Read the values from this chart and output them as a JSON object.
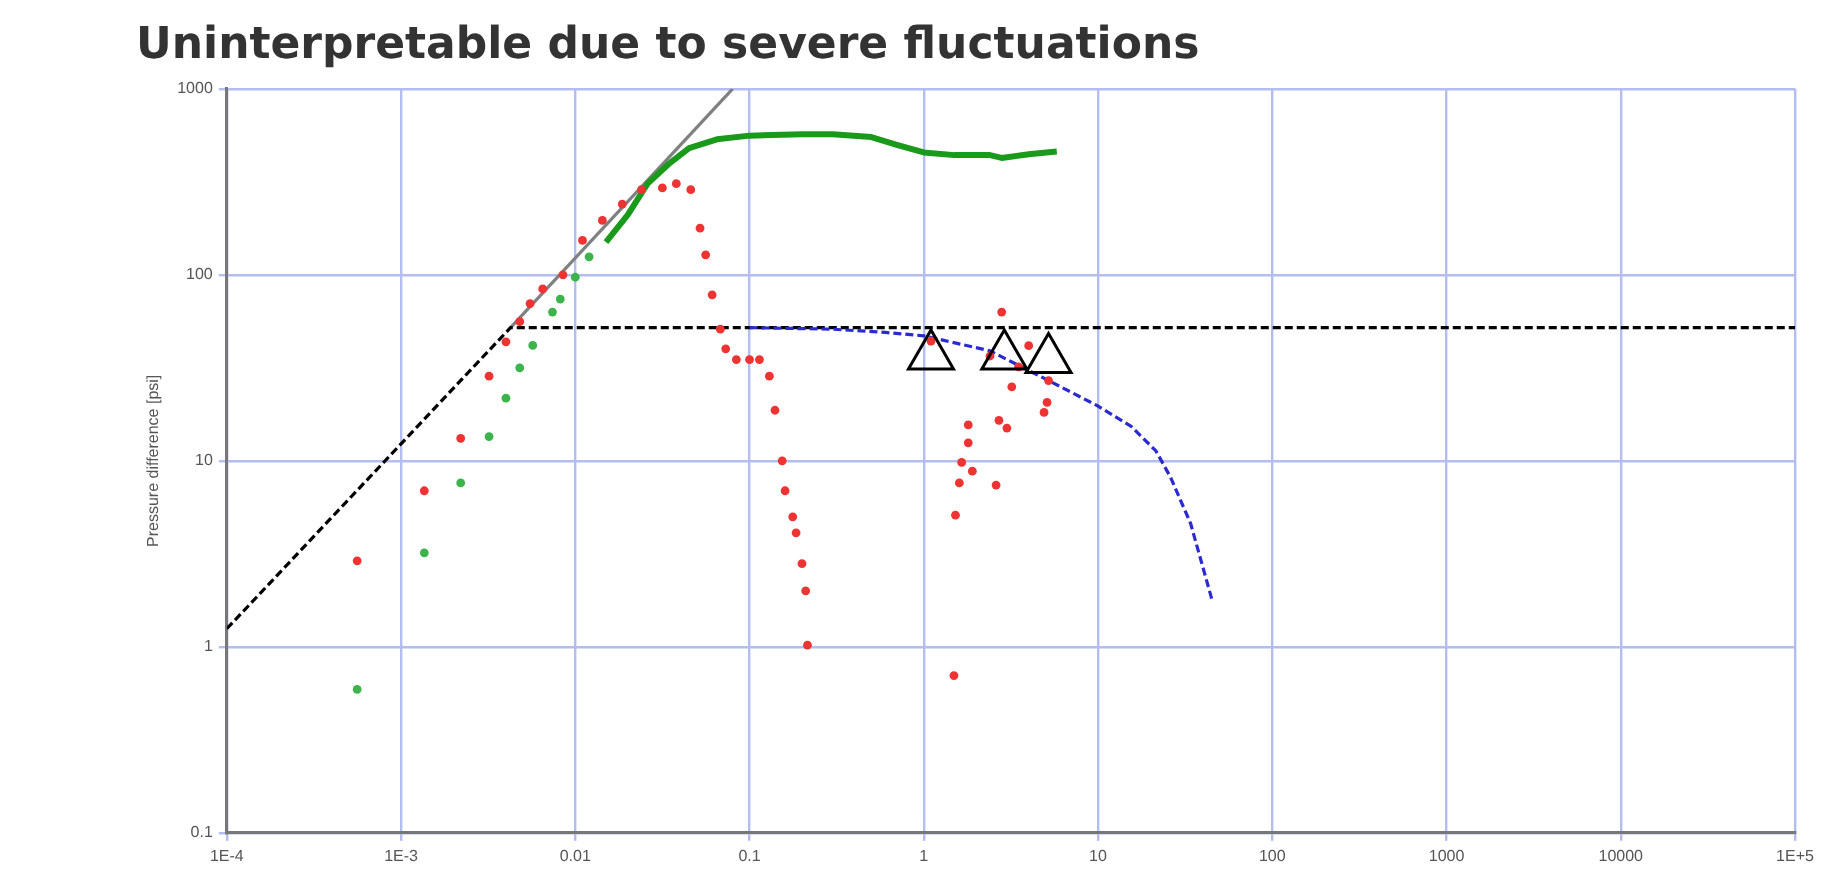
{
  "chart_data": {
    "type": "scatter",
    "title": "Uninterpretable due to severe fluctuations",
    "ylabel": "Pressure difference [psi]",
    "log": "xy",
    "grid": true,
    "legend": false,
    "xlim": [
      0.0001,
      100000
    ],
    "ylim": [
      0.1,
      1000
    ],
    "xticks": [
      {
        "value": 0.0001,
        "label": "1E-4"
      },
      {
        "value": 0.001,
        "label": "1E-3"
      },
      0.01,
      0.1,
      1,
      10,
      100,
      1000,
      10000,
      {
        "value": 100000,
        "label": "1E+5"
      }
    ],
    "yticks": [
      0.1,
      1,
      10,
      100,
      1000
    ],
    "series": [
      {
        "type": "line",
        "color": "#808080",
        "line_style": "solid",
        "x": [
          0.00425,
          0.08
        ],
        "values": [
          52,
          1000
        ]
      },
      {
        "type": "line",
        "color": "#000000",
        "line_style": "dashed",
        "x": [
          0.0001,
          0.00425,
          100000
        ],
        "values": [
          1.25,
          52,
          52
        ]
      },
      {
        "type": "line",
        "color": "#2a2ad0",
        "line_style": "dashed",
        "x": [
          0.1,
          0.3,
          0.6,
          1,
          2.4,
          5.2,
          10,
          15.5,
          21.5,
          26,
          34,
          45
        ],
        "values": [
          52,
          51,
          49,
          47,
          39,
          27,
          19.7,
          15.3,
          11.3,
          8.2,
          4.6,
          1.8
        ]
      },
      {
        "type": "line",
        "color": "#1a9a1a",
        "line_style": "solid",
        "x": [
          0.015,
          0.02,
          0.026,
          0.035,
          0.045,
          0.065,
          0.1,
          0.2,
          0.3,
          0.5,
          0.7,
          1.0,
          1.5,
          2.4,
          2.8,
          4,
          5.8
        ],
        "values": [
          150,
          210,
          309,
          400,
          480,
          535,
          560,
          570,
          570,
          550,
          500,
          455,
          440,
          440,
          425,
          445,
          460
        ]
      },
      {
        "color": "#3cb44b",
        "marker": "circle",
        "x": [
          0.00056,
          0.00136,
          0.0022,
          0.0032,
          0.004,
          0.0048,
          0.0057,
          0.0074,
          0.0082,
          0.01,
          0.012
        ],
        "values": [
          0.59,
          3.2,
          7.6,
          13.5,
          21.7,
          31.6,
          41.7,
          63,
          74,
          97,
          125
        ]
      },
      {
        "color": "#ee3333",
        "marker": "circle",
        "x": [
          0.00056,
          0.00136,
          0.0022,
          0.0032,
          0.004,
          0.0048,
          0.0055,
          0.0065,
          0.0085,
          0.011,
          0.0143,
          0.0186,
          0.024,
          0.0316,
          0.038,
          0.046,
          0.052,
          0.056,
          0.061,
          0.068,
          0.073,
          0.084,
          0.1,
          0.114,
          0.13,
          0.14,
          0.154,
          0.16,
          0.177,
          0.185,
          0.2,
          0.21,
          0.215,
          1.1,
          1.49,
          1.52,
          1.6,
          1.65,
          1.8,
          1.8,
          1.9,
          2.4,
          2.6,
          2.7,
          2.8,
          3.0,
          3.2,
          3.5,
          4.0,
          4.9,
          5.1,
          5.2
        ],
        "values": [
          2.9,
          6.9,
          13.2,
          28.5,
          43.6,
          56,
          70,
          84,
          100,
          153,
          196,
          240,
          287,
          293,
          309,
          287,
          178,
          128,
          78,
          51,
          40,
          35,
          35,
          35,
          28.5,
          18.7,
          10,
          6.9,
          5,
          4.1,
          2.8,
          2.0,
          1.02,
          44,
          0.7,
          5.1,
          7.6,
          9.8,
          12.5,
          15.6,
          8.8,
          36.6,
          7.4,
          16.5,
          63,
          15,
          25,
          32,
          41.6,
          18.2,
          20.6,
          27
        ]
      },
      {
        "color": "#000000",
        "marker": "triangle",
        "x": [
          1.1,
          2.9,
          5.2
        ],
        "values": [
          36.6,
          36.6,
          35
        ]
      }
    ]
  }
}
